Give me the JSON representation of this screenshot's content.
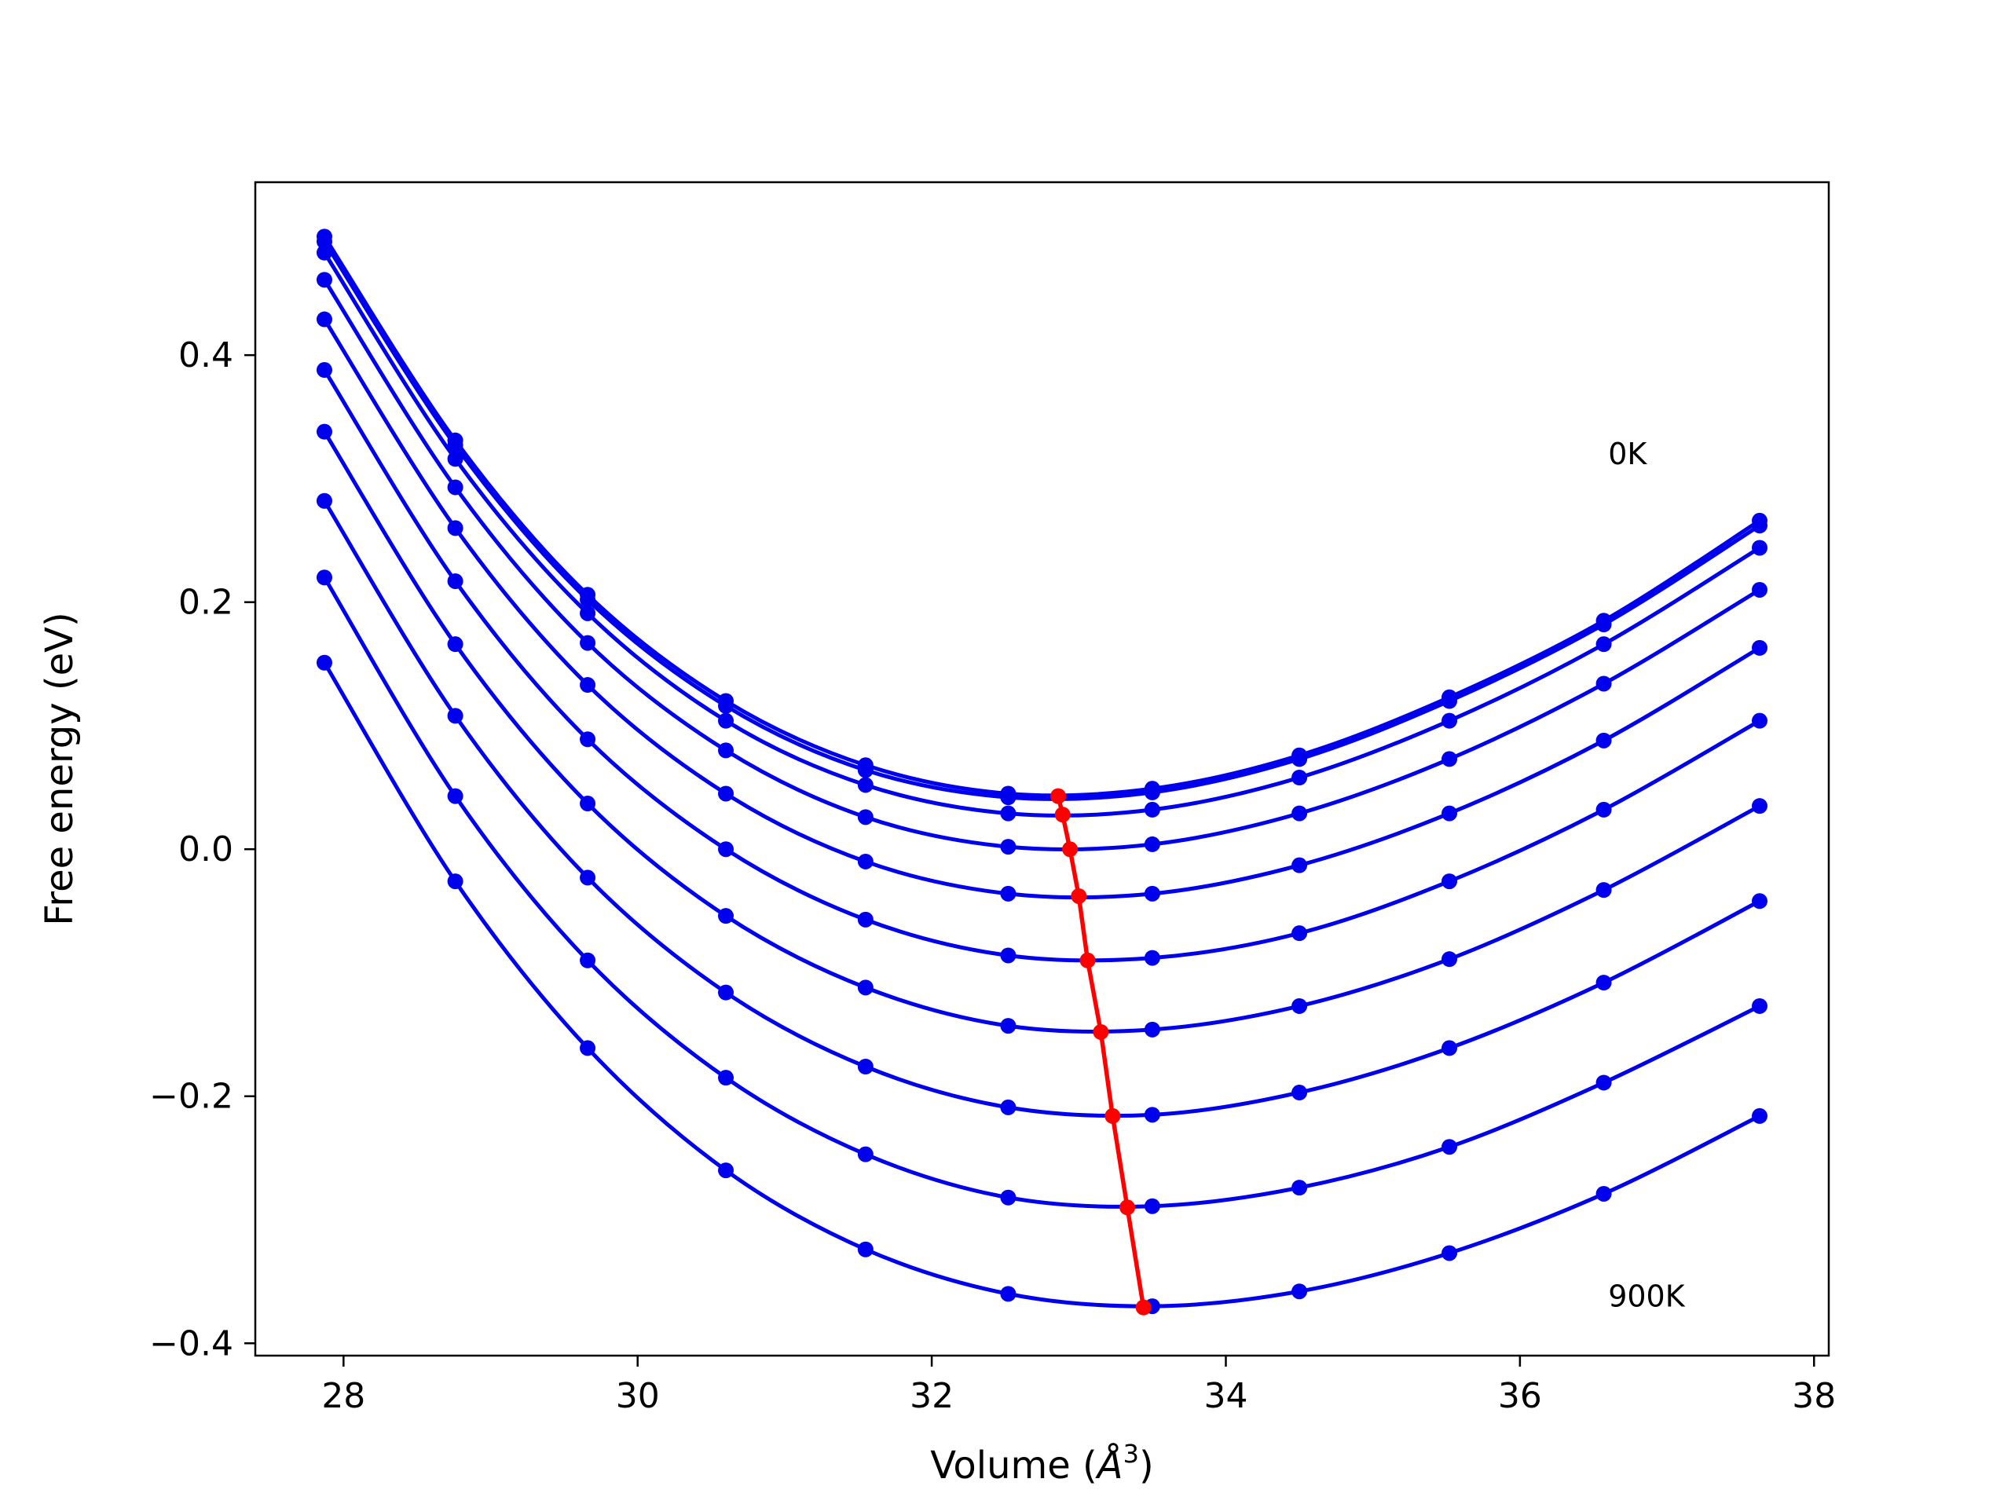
{
  "chart_data": {
    "type": "line",
    "title": "",
    "xlabel_prefix": "Volume (",
    "xlabel_unit": "Å",
    "xlabel_exp": "3",
    "xlabel_suffix": ")",
    "ylabel": "Free energy (eV)",
    "xlim": [
      27.4,
      38.1
    ],
    "ylim": [
      -0.41,
      0.54
    ],
    "xticks": [
      28,
      30,
      32,
      34,
      36,
      38
    ],
    "xtick_labels": [
      "28",
      "30",
      "32",
      "34",
      "36",
      "38"
    ],
    "yticks": [
      -0.4,
      -0.2,
      0.0,
      0.2,
      0.4
    ],
    "ytick_labels": [
      "−0.4",
      "−0.2",
      "0.0",
      "0.2",
      "0.4"
    ],
    "grid": false,
    "curve_color": "#0000ee",
    "min_line_color": "#ff0000",
    "x": [
      27.87,
      28.76,
      29.66,
      30.6,
      31.55,
      32.52,
      33.5,
      34.5,
      35.52,
      36.57,
      37.63
    ],
    "series": [
      {
        "y": [
          0.496,
          0.331,
          0.206,
          0.12,
          0.068,
          0.045,
          0.049,
          0.076,
          0.123,
          0.185,
          0.266
        ]
      },
      {
        "y": [
          0.492,
          0.327,
          0.202,
          0.116,
          0.064,
          0.042,
          0.046,
          0.073,
          0.12,
          0.182,
          0.262
        ]
      },
      {
        "y": [
          0.483,
          0.316,
          0.191,
          0.104,
          0.052,
          0.029,
          0.032,
          0.058,
          0.104,
          0.166,
          0.244
        ]
      },
      {
        "y": [
          0.461,
          0.293,
          0.167,
          0.08,
          0.026,
          0.002,
          0.004,
          0.029,
          0.073,
          0.134,
          0.21
        ]
      },
      {
        "y": [
          0.429,
          0.26,
          0.133,
          0.045,
          -0.01,
          -0.036,
          -0.036,
          -0.013,
          0.029,
          0.088,
          0.163
        ]
      },
      {
        "y": [
          0.388,
          0.217,
          0.089,
          0.0,
          -0.057,
          -0.086,
          -0.088,
          -0.068,
          -0.026,
          0.032,
          0.104
        ]
      },
      {
        "y": [
          0.338,
          0.166,
          0.037,
          -0.054,
          -0.112,
          -0.143,
          -0.146,
          -0.127,
          -0.089,
          -0.033,
          0.035
        ]
      },
      {
        "y": [
          0.282,
          0.108,
          -0.023,
          -0.116,
          -0.176,
          -0.209,
          -0.215,
          -0.197,
          -0.161,
          -0.108,
          -0.042
        ]
      },
      {
        "y": [
          0.22,
          0.043,
          -0.09,
          -0.185,
          -0.247,
          -0.282,
          -0.289,
          -0.274,
          -0.241,
          -0.189,
          -0.127
        ]
      },
      {
        "y": [
          0.151,
          -0.026,
          -0.161,
          -0.26,
          -0.324,
          -0.36,
          -0.37,
          -0.358,
          -0.327,
          -0.279,
          -0.216
        ]
      }
    ],
    "minimum_points": {
      "x": [
        32.86,
        32.89,
        32.94,
        33.0,
        33.06,
        33.15,
        33.23,
        33.33,
        33.44
      ],
      "y": [
        0.043,
        0.028,
        0.0,
        -0.038,
        -0.09,
        -0.148,
        -0.216,
        -0.29,
        -0.371
      ]
    },
    "annotations": [
      {
        "text": "0K",
        "x": 36.6,
        "y": 0.32
      },
      {
        "text": "900K",
        "x": 36.6,
        "y": -0.362
      }
    ]
  }
}
